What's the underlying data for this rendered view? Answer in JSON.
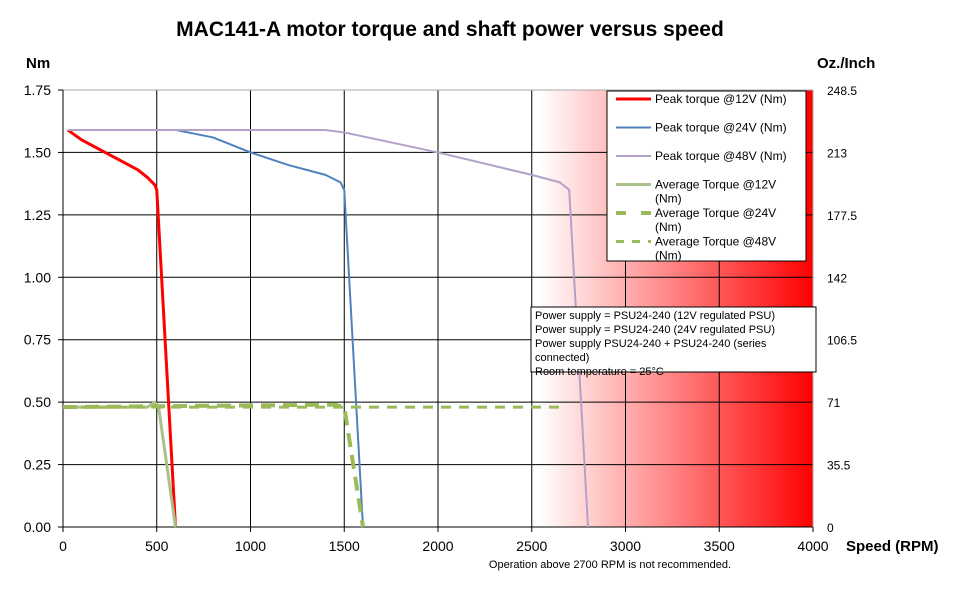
{
  "chart_data": {
    "type": "line",
    "title": "MAC141-A motor torque and shaft power versus speed",
    "ylabel": "Nm",
    "y2label": "Oz./Inch",
    "xlabel": "Speed (RPM)",
    "xlim": [
      0,
      4000
    ],
    "ylim": [
      0,
      1.75
    ],
    "xticks": [
      "0",
      "500",
      "1000",
      "1500",
      "2000",
      "2500",
      "3000",
      "3500",
      "4000"
    ],
    "yticks": [
      "0.00",
      "0.25",
      "0.50",
      "0.75",
      "1.00",
      "1.25",
      "1.50",
      "1.75"
    ],
    "y2ticks": [
      "0",
      "35.5",
      "71",
      "106.5",
      "142",
      "177.5",
      "213",
      "248.5"
    ],
    "grid": true,
    "legend_position": "top-right",
    "not_recommended_from_rpm": 2700,
    "footnote": "Operation above 2700 RPM is not recommended.",
    "notes": [
      "Power supply =  PSU24-240 (12V regulated PSU)",
      "Power supply =  PSU24-240 (24V regulated PSU)",
      "Power supply PSU24-240 + PSU24-240 (series",
      "connected)",
      "Room temperature = 25°C"
    ],
    "series": [
      {
        "name": "Peak torque @12V (Nm)",
        "color": "#ff0000",
        "dash": "",
        "width": 3,
        "x": [
          25,
          100,
          200,
          300,
          400,
          450,
          490,
          500,
          600
        ],
        "y": [
          1.59,
          1.55,
          1.51,
          1.47,
          1.43,
          1.4,
          1.37,
          1.35,
          0
        ]
      },
      {
        "name": "Peak torque @24V (Nm)",
        "color": "#4f81bd",
        "dash": "",
        "width": 2,
        "x": [
          25,
          600,
          800,
          1000,
          1200,
          1400,
          1480,
          1500,
          1600
        ],
        "y": [
          1.59,
          1.59,
          1.56,
          1.5,
          1.45,
          1.41,
          1.38,
          1.35,
          0
        ]
      },
      {
        "name": "Peak torque @48V (Nm)",
        "color": "#b3a2c7",
        "dash": "",
        "width": 2,
        "x": [
          25,
          1400,
          1500,
          2000,
          2500,
          2650,
          2700,
          2800
        ],
        "y": [
          1.59,
          1.59,
          1.58,
          1.5,
          1.41,
          1.38,
          1.35,
          0
        ]
      },
      {
        "name": "Average Torque @12V (Nm)",
        "color": "#a9c28a",
        "dash": "",
        "width": 3,
        "x": [
          0,
          450,
          490,
          510,
          600
        ],
        "y": [
          0.48,
          0.48,
          0.5,
          0.48,
          0
        ]
      },
      {
        "name": "Average Torque @24V (Nm)",
        "color": "#9bbb59",
        "dash": "14 8",
        "width": 4,
        "x": [
          0,
          1450,
          1500,
          1600
        ],
        "y": [
          0.48,
          0.49,
          0.48,
          0
        ]
      },
      {
        "name": "Average Torque @48V (Nm)",
        "color": "#9bbb59",
        "dash": "10 8",
        "width": 3,
        "x": [
          0,
          2650
        ],
        "y": [
          0.48,
          0.48
        ]
      }
    ]
  }
}
